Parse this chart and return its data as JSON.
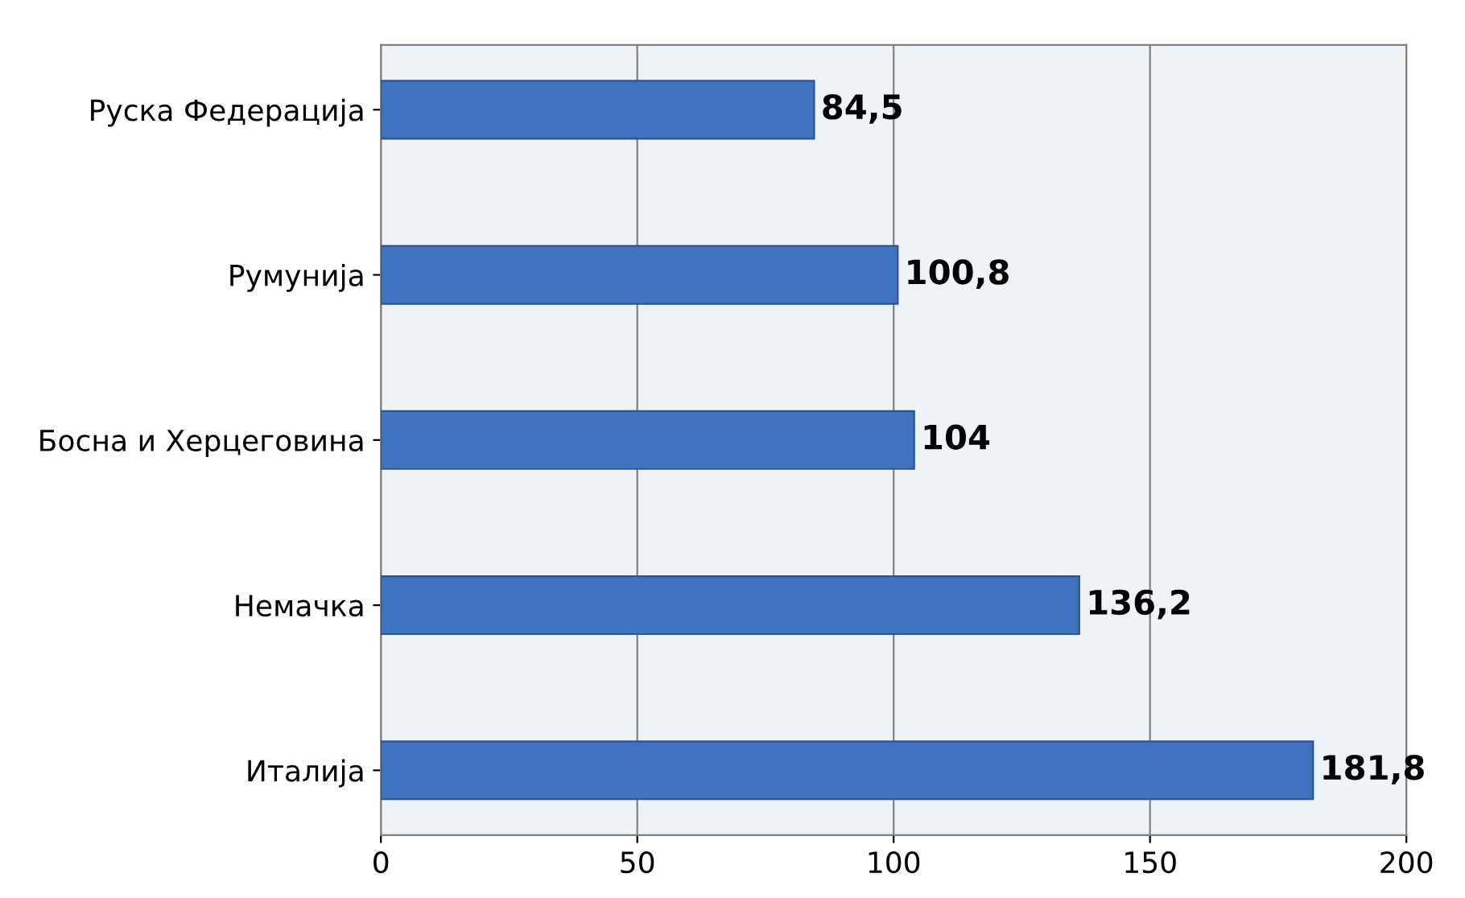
{
  "chart_data": {
    "type": "bar",
    "orientation": "horizontal",
    "categories": [
      "Руска Федерација",
      "Румунија",
      "Босна и Херцеговина",
      "Немачка",
      "Италија"
    ],
    "values": [
      84.5,
      100.8,
      104,
      136.2,
      181.8
    ],
    "value_labels": [
      "84,5",
      "100,8",
      "104",
      "136,2",
      "181,8"
    ],
    "color": "#3f72bf",
    "xlim": [
      0,
      200
    ],
    "xticks": [
      0,
      50,
      100,
      150,
      200
    ],
    "grid": "x"
  }
}
